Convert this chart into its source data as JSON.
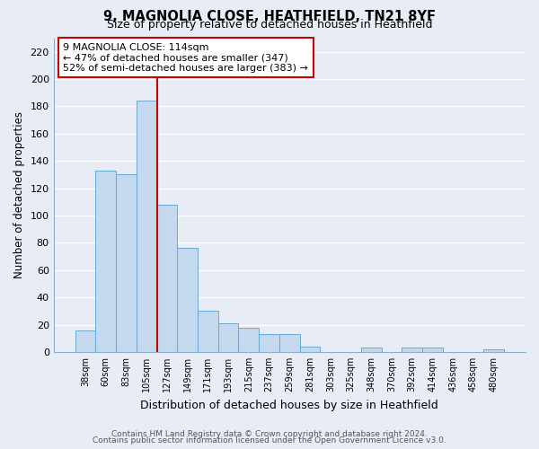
{
  "title_line1": "9, MAGNOLIA CLOSE, HEATHFIELD, TN21 8YF",
  "title_line2": "Size of property relative to detached houses in Heathfield",
  "xlabel": "Distribution of detached houses by size in Heathfield",
  "ylabel": "Number of detached properties",
  "bar_labels": [
    "38sqm",
    "60sqm",
    "83sqm",
    "105sqm",
    "127sqm",
    "149sqm",
    "171sqm",
    "193sqm",
    "215sqm",
    "237sqm",
    "259sqm",
    "281sqm",
    "303sqm",
    "325sqm",
    "348sqm",
    "370sqm",
    "392sqm",
    "414sqm",
    "436sqm",
    "458sqm",
    "480sqm"
  ],
  "bar_values": [
    16,
    133,
    130,
    184,
    108,
    76,
    30,
    21,
    18,
    13,
    13,
    4,
    0,
    0,
    3,
    0,
    3,
    3,
    0,
    0,
    2
  ],
  "bar_color": "#c5d9ee",
  "bar_edge_color": "#6aaad4",
  "ylim": [
    0,
    230
  ],
  "yticks": [
    0,
    20,
    40,
    60,
    80,
    100,
    120,
    140,
    160,
    180,
    200,
    220
  ],
  "property_line_index": 3,
  "property_line_color": "#cc0000",
  "annotation_title": "9 MAGNOLIA CLOSE: 114sqm",
  "annotation_line1": "← 47% of detached houses are smaller (347)",
  "annotation_line2": "52% of semi-detached houses are larger (383) →",
  "annotation_box_color": "#ffffff",
  "annotation_box_edge": "#cc0000",
  "footer_line1": "Contains HM Land Registry data © Crown copyright and database right 2024.",
  "footer_line2": "Contains public sector information licensed under the Open Government Licence v3.0.",
  "bg_color": "#e8ecf5",
  "plot_bg_color": "#e8ecf5",
  "grid_color": "#ffffff"
}
